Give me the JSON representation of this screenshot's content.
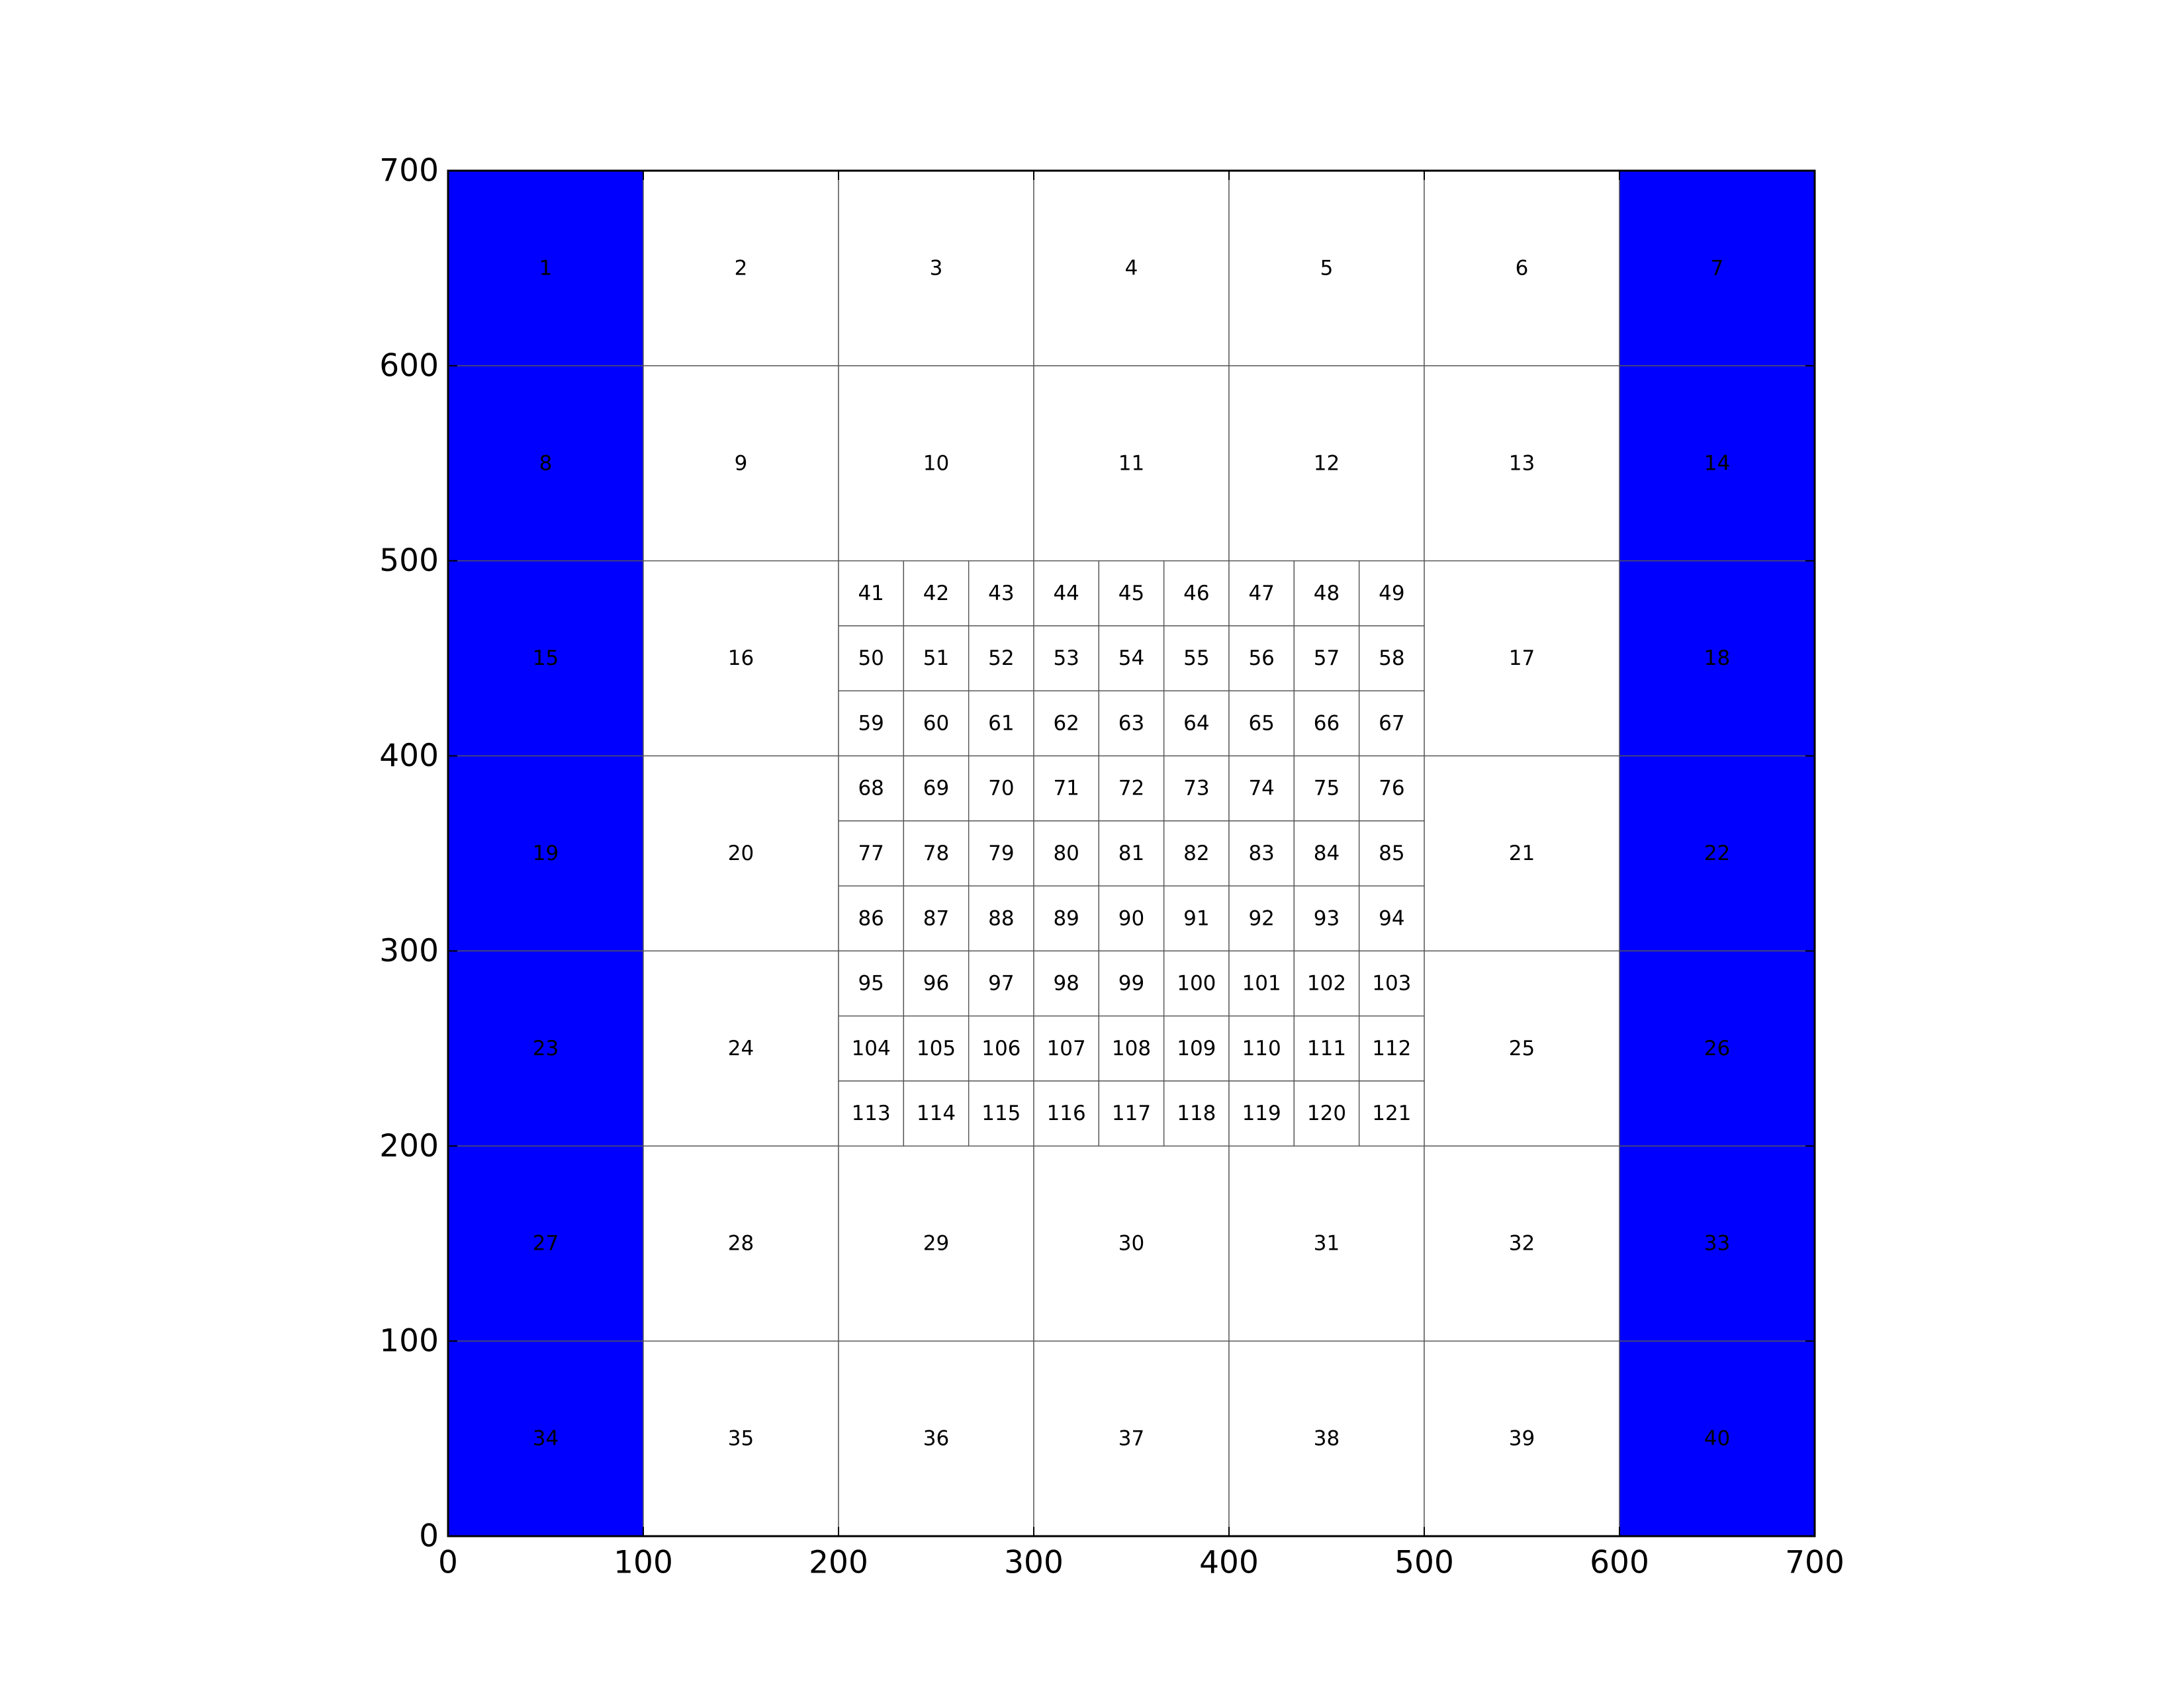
{
  "chart_data": {
    "type": "heatmap",
    "title": "",
    "xlabel": "",
    "ylabel": "",
    "xlim": [
      0,
      700
    ],
    "ylim": [
      0,
      700
    ],
    "x_ticks": [
      0,
      100,
      200,
      300,
      400,
      500,
      600,
      700
    ],
    "x_tick_labels": [
      "0",
      "100",
      "200",
      "300",
      "400",
      "500",
      "600",
      "700"
    ],
    "y_ticks": [
      0,
      100,
      200,
      300,
      400,
      500,
      600,
      700
    ],
    "y_tick_labels": [
      "0",
      "100",
      "200",
      "300",
      "400",
      "500",
      "600",
      "700"
    ],
    "grid": false,
    "colors": {
      "highlight": "#0000ff",
      "normal": "#ffffff",
      "cell_border": "#555555",
      "axes": "#000000"
    },
    "coarse_cells": {
      "cell_size": 100,
      "x_origins": [
        0,
        100,
        200,
        300,
        400,
        500,
        600
      ],
      "y_origins": [
        600,
        500,
        400,
        300,
        200,
        100,
        0
      ],
      "highlight_columns": [
        0,
        6
      ],
      "refined_block": {
        "x_range": [
          200,
          500
        ],
        "y_range": [
          200,
          500
        ]
      },
      "ids": [
        [
          "1",
          "2",
          "3",
          "4",
          "5",
          "6",
          "7"
        ],
        [
          "8",
          "9",
          "10",
          "11",
          "12",
          "13",
          "14"
        ],
        [
          "15",
          "16",
          null,
          null,
          null,
          "17",
          "18"
        ],
        [
          "19",
          "20",
          null,
          null,
          null,
          "21",
          "22"
        ],
        [
          "23",
          "24",
          null,
          null,
          null,
          "25",
          "26"
        ],
        [
          "27",
          "28",
          "29",
          "30",
          "31",
          "32",
          "33"
        ],
        [
          "34",
          "35",
          "36",
          "37",
          "38",
          "39",
          "40"
        ]
      ]
    },
    "fine_cells": {
      "x_range": [
        200,
        500
      ],
      "y_range": [
        200,
        500
      ],
      "cols": 9,
      "rows": 9,
      "ids": [
        [
          "41",
          "42",
          "43",
          "44",
          "45",
          "46",
          "47",
          "48",
          "49"
        ],
        [
          "50",
          "51",
          "52",
          "53",
          "54",
          "55",
          "56",
          "57",
          "58"
        ],
        [
          "59",
          "60",
          "61",
          "62",
          "63",
          "64",
          "65",
          "66",
          "67"
        ],
        [
          "68",
          "69",
          "70",
          "71",
          "72",
          "73",
          "74",
          "75",
          "76"
        ],
        [
          "77",
          "78",
          "79",
          "80",
          "81",
          "82",
          "83",
          "84",
          "85"
        ],
        [
          "86",
          "87",
          "88",
          "89",
          "90",
          "91",
          "92",
          "93",
          "94"
        ],
        [
          "95",
          "96",
          "97",
          "98",
          "99",
          "100",
          "101",
          "102",
          "103"
        ],
        [
          "104",
          "105",
          "106",
          "107",
          "108",
          "109",
          "110",
          "111",
          "112"
        ],
        [
          "113",
          "114",
          "115",
          "116",
          "117",
          "118",
          "119",
          "120",
          "121"
        ]
      ]
    }
  }
}
